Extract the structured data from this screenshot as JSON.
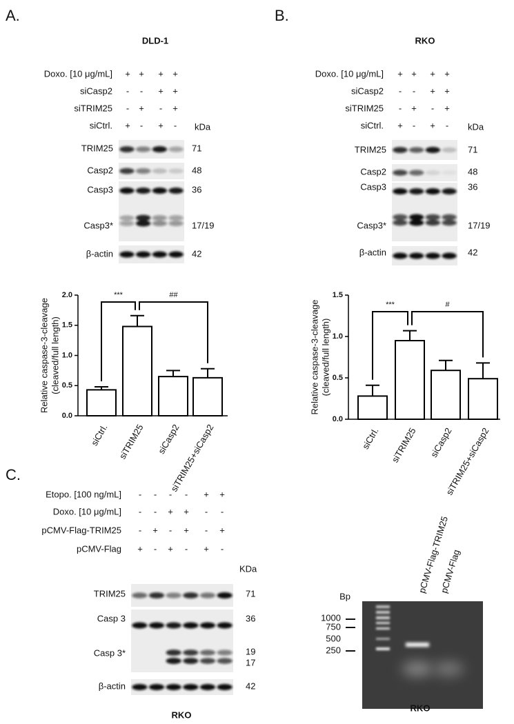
{
  "panel_a": {
    "label": "A.",
    "cell_line": "DLD-1",
    "treatments": [
      {
        "name": "Doxo. [10 μg/mL]",
        "signs": [
          "+",
          "+",
          "+",
          "+"
        ]
      },
      {
        "name": "siCasp2",
        "signs": [
          "-",
          "-",
          "+",
          "+"
        ]
      },
      {
        "name": "siTRIM25",
        "signs": [
          "-",
          "+",
          "-",
          "+"
        ]
      },
      {
        "name": "siCtrl.",
        "signs": [
          "+",
          "-",
          "+",
          "-"
        ]
      }
    ],
    "kda_header": "kDa",
    "blots": [
      {
        "protein": "TRIM25",
        "kda": "71"
      },
      {
        "protein": "Casp2",
        "kda": "48"
      },
      {
        "protein": "Casp3",
        "kda": "36"
      },
      {
        "protein": "Casp3*",
        "kda": "17/19"
      },
      {
        "protein": "β-actin",
        "kda": "42"
      }
    ]
  },
  "panel_b": {
    "label": "B.",
    "cell_line": "RKO",
    "treatments": [
      {
        "name": "Doxo. [10 μg/mL]",
        "signs": [
          "+",
          "+",
          "+",
          "+"
        ]
      },
      {
        "name": "siCasp2",
        "signs": [
          "-",
          "-",
          "+",
          "+"
        ]
      },
      {
        "name": "siTRIM25",
        "signs": [
          "-",
          "+",
          "-",
          "+"
        ]
      },
      {
        "name": "siCtrl.",
        "signs": [
          "+",
          "-",
          "+",
          "-"
        ]
      }
    ],
    "kda_header": "kDa",
    "blots": [
      {
        "protein": "TRIM25",
        "kda": "71"
      },
      {
        "protein": "Casp2",
        "kda": "48"
      },
      {
        "protein": "Casp3",
        "kda": "36"
      },
      {
        "protein": "Casp3*",
        "kda": "17/19"
      },
      {
        "protein": "β-actin",
        "kda": "42"
      }
    ]
  },
  "panel_c": {
    "label": "C.",
    "caption": "RKO",
    "treatments": [
      {
        "name": "Etopo. [100 ng/mL]",
        "signs": [
          "-",
          "-",
          "-",
          "-",
          "+",
          "+"
        ]
      },
      {
        "name": "Doxo. [10 μg/mL]",
        "signs": [
          "-",
          "-",
          "+",
          "+",
          "-",
          "-"
        ]
      },
      {
        "name": "pCMV-Flag-TRIM25",
        "signs": [
          "-",
          "+",
          "-",
          "+",
          "-",
          "+"
        ]
      },
      {
        "name": "pCMV-Flag",
        "signs": [
          "+",
          "-",
          "+",
          "-",
          "+",
          "-"
        ]
      }
    ],
    "kda_header": "KDa",
    "blots": [
      {
        "protein": "TRIM25",
        "kda": "71"
      },
      {
        "protein": "Casp 3",
        "kda": "36"
      },
      {
        "protein": "Casp 3*",
        "kda": [
          "19",
          "17"
        ]
      },
      {
        "protein": "β-actin",
        "kda": "42"
      }
    ],
    "gel": {
      "bp_header": "Bp",
      "ladder": [
        "1000",
        "750",
        "500",
        "250"
      ],
      "lanes": [
        "pCMV-Flag-TRIM25",
        "pCMV-Flag"
      ],
      "caption": "RKO"
    }
  },
  "chart_data": [
    {
      "type": "bar",
      "ylabel": [
        "Relative caspase-3-cleavage",
        "(cleaved/full length)"
      ],
      "categories": [
        "siCtrl.",
        "siTRIM25",
        "siCasp2",
        "siTRIM25+siCasp2"
      ],
      "values": [
        0.43,
        1.48,
        0.65,
        0.63
      ],
      "errors": [
        0.05,
        0.18,
        0.1,
        0.15
      ],
      "color": "#ffffff",
      "ylim": [
        0,
        2.0
      ],
      "yticks": [
        {
          "value": 0,
          "label": "0.0"
        },
        {
          "value": 0.5,
          "label": "0.5"
        },
        {
          "value": 1,
          "label": "1.0"
        },
        {
          "value": 1.5,
          "label": "1.5"
        },
        {
          "value": 2,
          "label": "2.0"
        }
      ],
      "annotations": [
        "***",
        "##"
      ]
    },
    {
      "type": "bar",
      "ylabel": [
        "Relative caspase-3-cleavage",
        "(cleaved/full length)"
      ],
      "categories": [
        "siCtrl.",
        "siTRIM25",
        "siCasp2",
        "siTRIM25+siCasp2"
      ],
      "values": [
        0.28,
        0.95,
        0.59,
        0.49
      ],
      "errors": [
        0.13,
        0.12,
        0.12,
        0.19
      ],
      "color": "#ffffff",
      "ylim": [
        0,
        1.5
      ],
      "yticks": [
        {
          "value": 0,
          "label": "0.0"
        },
        {
          "value": 0.5,
          "label": "0.5"
        },
        {
          "value": 1,
          "label": "1.0"
        },
        {
          "value": 1.5,
          "label": "1.5"
        }
      ],
      "annotations": [
        "***",
        "#"
      ]
    }
  ]
}
